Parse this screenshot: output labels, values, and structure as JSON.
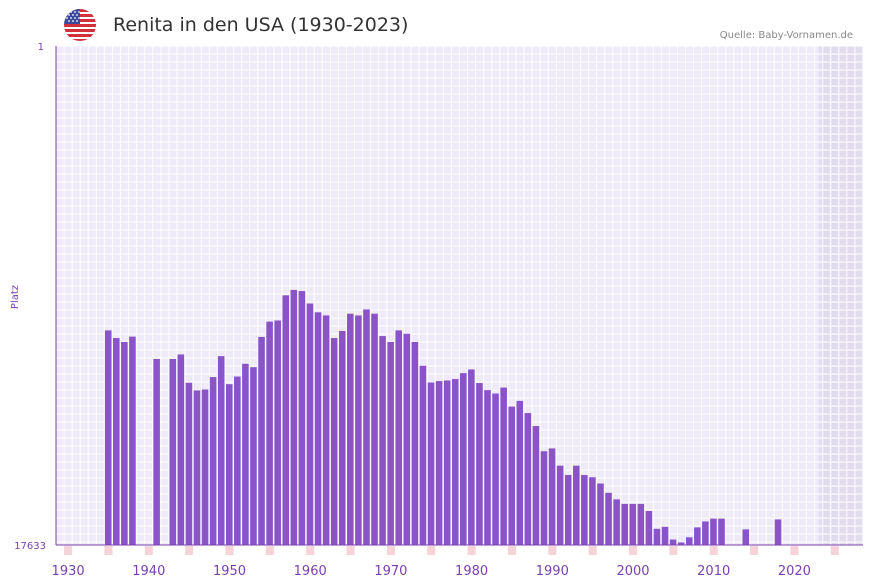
{
  "header": {
    "title": "Renita in den USA (1930-2023)",
    "source": "Quelle: Baby-Vornamen.de",
    "flag_icon": "usa-flag-icon"
  },
  "colors": {
    "bar": "#8a54c8",
    "grid_bg": "#efeaf8",
    "grid_line": "#ffffff",
    "future_bg": "#e2dcec",
    "axis": "#7b3fb2",
    "decade_marker": "#e07b86",
    "halfdecade_marker": "#f6d3d8"
  },
  "chart_data": {
    "type": "bar",
    "title": "Renita in den USA (1930-2023)",
    "xlabel": "",
    "ylabel": "Platz",
    "y_inverted": true,
    "ylim": [
      1,
      17633
    ],
    "ytick_labels": [
      "1",
      "17633"
    ],
    "xlim": [
      1929,
      2029
    ],
    "xticks": [
      1930,
      1940,
      1950,
      1960,
      1970,
      1980,
      1990,
      2000,
      2010,
      2020
    ],
    "xtick_labels": [
      "1930",
      "1940",
      "1950",
      "1960",
      "1970",
      "1980",
      "1990",
      "2000",
      "2010",
      "2020"
    ],
    "future_shade_from": 2023,
    "years": [
      1935,
      1936,
      1937,
      1938,
      1941,
      1943,
      1944,
      1945,
      1946,
      1947,
      1948,
      1949,
      1950,
      1951,
      1952,
      1953,
      1954,
      1955,
      1956,
      1957,
      1958,
      1959,
      1960,
      1961,
      1962,
      1963,
      1964,
      1965,
      1966,
      1967,
      1968,
      1969,
      1970,
      1971,
      1972,
      1973,
      1974,
      1975,
      1976,
      1977,
      1978,
      1979,
      1980,
      1981,
      1982,
      1983,
      1984,
      1985,
      1986,
      1987,
      1988,
      1989,
      1990,
      1991,
      1992,
      1993,
      1994,
      1995,
      1996,
      1997,
      1998,
      1999,
      2000,
      2001,
      2002,
      2003,
      2004,
      2005,
      2006,
      2007,
      2008,
      2009,
      2010,
      2011,
      2014,
      2018
    ],
    "ranks": [
      10050,
      10320,
      10460,
      10270,
      11060,
      11060,
      10900,
      11900,
      12170,
      12140,
      11700,
      10960,
      11950,
      11680,
      11230,
      11350,
      10280,
      9740,
      9700,
      8810,
      8620,
      8660,
      9100,
      9410,
      9520,
      10320,
      10070,
      9460,
      9520,
      9310,
      9460,
      10250,
      10460,
      10050,
      10170,
      10460,
      11300,
      11890,
      11840,
      11820,
      11770,
      11560,
      11430,
      11910,
      12160,
      12280,
      12070,
      12740,
      12540,
      12970,
      13430,
      14320,
      14220,
      14830,
      15160,
      14830,
      15160,
      15240,
      15460,
      15790,
      16020,
      16180,
      16180,
      16180,
      16430,
      17060,
      16990,
      17440,
      17540,
      17360,
      17010,
      16800,
      16700,
      16700,
      17080,
      16730
    ]
  }
}
